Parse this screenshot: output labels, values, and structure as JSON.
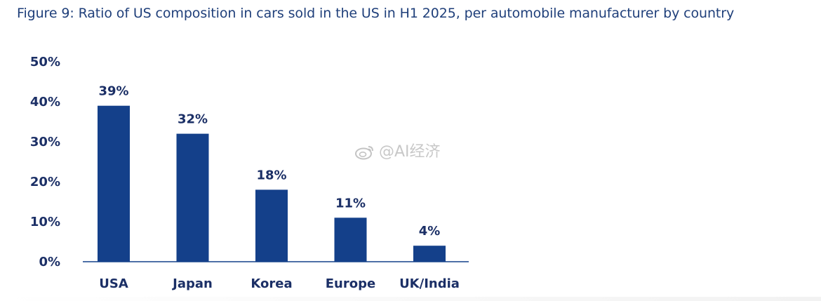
{
  "figure": {
    "title": "Figure 9: Ratio of US composition in cars sold in the US in H1 2025, per automobile manufacturer by country"
  },
  "watermark": {
    "text": "@AI经济",
    "logo_icon": "weibo-logo-icon"
  },
  "chart_data": {
    "type": "bar",
    "title": "Figure 9: Ratio of US composition in cars sold in the US in H1 2025, per automobile manufacturer by country",
    "xlabel": "",
    "ylabel": "",
    "categories": [
      "USA",
      "Japan",
      "Korea",
      "Europe",
      "UK/India"
    ],
    "values": [
      39,
      32,
      18,
      11,
      4
    ],
    "data_labels": [
      "39%",
      "32%",
      "18%",
      "11%",
      "4%"
    ],
    "ylim": [
      0,
      50
    ],
    "yticks": [
      0,
      10,
      20,
      30,
      40,
      50
    ],
    "ytick_labels": [
      "0%",
      "10%",
      "20%",
      "30%",
      "40%",
      "50%"
    ],
    "grid": false,
    "legend": "none",
    "bar_color": "#14408a",
    "text_color": "#1b2f66",
    "axis_color": "#14408a"
  }
}
